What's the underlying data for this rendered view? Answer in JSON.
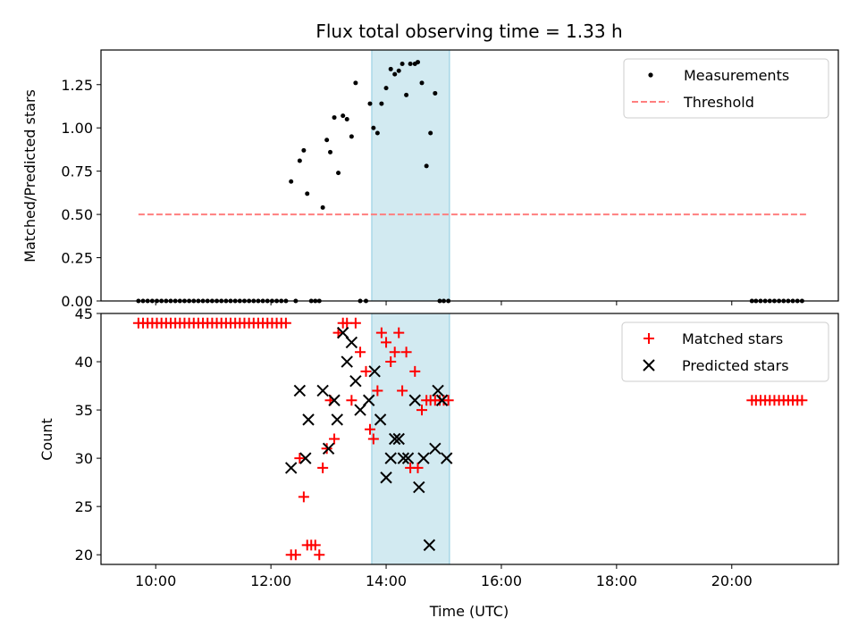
{
  "chart_data": [
    {
      "type": "scatter",
      "title": "Flux total observing time = 1.33 h",
      "xlabel": "",
      "ylabel": "Matched/Predicted stars",
      "xlim": [
        9.05,
        21.85
      ],
      "ylim": [
        0.0,
        1.45
      ],
      "yticks": [
        0.0,
        0.25,
        0.5,
        0.75,
        1.0,
        1.25
      ],
      "ytick_labels": [
        "0.00",
        "0.25",
        "0.50",
        "0.75",
        "1.00",
        "1.25"
      ],
      "xticks": [
        10,
        12,
        14,
        16,
        18,
        20
      ],
      "xtick_labels": [],
      "shaded_span": {
        "x_start": 13.75,
        "x_end": 15.1,
        "color": "#add8e6"
      },
      "legend_position": "top-right",
      "series": [
        {
          "name": "Measurements",
          "marker": "dot",
          "color": "#000000",
          "x": [
            9.7,
            9.78,
            9.86,
            9.94,
            10.02,
            10.1,
            10.18,
            10.26,
            10.34,
            10.42,
            10.5,
            10.58,
            10.66,
            10.74,
            10.82,
            10.9,
            10.98,
            11.06,
            11.14,
            11.22,
            11.3,
            11.38,
            11.46,
            11.54,
            11.62,
            11.7,
            11.78,
            11.86,
            11.94,
            12.02,
            12.1,
            12.18,
            12.26,
            12.35,
            12.43,
            12.5,
            12.57,
            12.63,
            12.7,
            12.77,
            12.84,
            12.9,
            12.97,
            13.03,
            13.1,
            13.17,
            13.25,
            13.32,
            13.4,
            13.47,
            13.55,
            13.65,
            13.72,
            13.78,
            13.85,
            13.92,
            14.0,
            14.08,
            14.15,
            14.22,
            14.28,
            14.35,
            14.42,
            14.5,
            14.55,
            14.62,
            14.7,
            14.77,
            14.85,
            14.93,
            15.0,
            15.08,
            20.35,
            20.42,
            20.5,
            20.58,
            20.66,
            20.74,
            20.82,
            20.9,
            20.98,
            21.06,
            21.14,
            21.22
          ],
          "y": [
            0,
            0,
            0,
            0,
            0,
            0,
            0,
            0,
            0,
            0,
            0,
            0,
            0,
            0,
            0,
            0,
            0,
            0,
            0,
            0,
            0,
            0,
            0,
            0,
            0,
            0,
            0,
            0,
            0,
            0,
            0,
            0,
            0,
            0.69,
            0,
            0.81,
            0.87,
            0.62,
            0,
            0,
            0,
            0.54,
            0.93,
            0.86,
            1.06,
            0.74,
            1.07,
            1.05,
            0.95,
            1.26,
            0,
            0,
            1.14,
            1.0,
            0.97,
            1.14,
            1.23,
            1.34,
            1.31,
            1.33,
            1.37,
            1.19,
            1.37,
            1.37,
            1.38,
            1.26,
            0.78,
            0.97,
            1.2,
            0,
            0,
            0,
            0,
            0,
            0,
            0,
            0,
            0,
            0,
            0,
            0,
            0,
            0,
            0
          ]
        },
        {
          "name": "Threshold",
          "marker": "dashed-line",
          "color": "#ff7f7f",
          "x": [
            9.7,
            21.3
          ],
          "y": [
            0.5,
            0.5
          ]
        }
      ]
    },
    {
      "type": "scatter",
      "title": "",
      "xlabel": "Time (UTC)",
      "ylabel": "Count",
      "xlim": [
        9.05,
        21.85
      ],
      "ylim": [
        19,
        45
      ],
      "yticks": [
        20,
        25,
        30,
        35,
        40,
        45
      ],
      "ytick_labels": [
        "20",
        "25",
        "30",
        "35",
        "40",
        "45"
      ],
      "xticks": [
        10,
        12,
        14,
        16,
        18,
        20
      ],
      "xtick_labels": [
        "10:00",
        "12:00",
        "14:00",
        "16:00",
        "18:00",
        "20:00"
      ],
      "shaded_span": {
        "x_start": 13.75,
        "x_end": 15.1,
        "color": "#add8e6"
      },
      "legend_position": "top-right",
      "series": [
        {
          "name": "Matched stars",
          "marker": "plus",
          "color": "#ff0000",
          "x": [
            9.7,
            9.78,
            9.86,
            9.94,
            10.02,
            10.1,
            10.18,
            10.26,
            10.34,
            10.42,
            10.5,
            10.58,
            10.66,
            10.74,
            10.82,
            10.9,
            10.98,
            11.06,
            11.14,
            11.22,
            11.3,
            11.38,
            11.46,
            11.54,
            11.62,
            11.7,
            11.78,
            11.86,
            11.94,
            12.02,
            12.1,
            12.18,
            12.26,
            12.35,
            12.43,
            12.5,
            12.57,
            12.63,
            12.7,
            12.77,
            12.84,
            12.9,
            12.97,
            13.03,
            13.1,
            13.17,
            13.25,
            13.32,
            13.4,
            13.47,
            13.55,
            13.65,
            13.72,
            13.78,
            13.85,
            13.92,
            14.0,
            14.08,
            14.15,
            14.22,
            14.28,
            14.35,
            14.42,
            14.5,
            14.55,
            14.62,
            14.7,
            14.77,
            14.85,
            14.93,
            15.0,
            15.08,
            20.35,
            20.42,
            20.5,
            20.58,
            20.66,
            20.74,
            20.82,
            20.9,
            20.98,
            21.06,
            21.14,
            21.22
          ],
          "y": [
            44,
            44,
            44,
            44,
            44,
            44,
            44,
            44,
            44,
            44,
            44,
            44,
            44,
            44,
            44,
            44,
            44,
            44,
            44,
            44,
            44,
            44,
            44,
            44,
            44,
            44,
            44,
            44,
            44,
            44,
            44,
            44,
            44,
            20,
            20,
            30,
            26,
            21,
            21,
            21,
            20,
            29,
            31,
            36,
            32,
            43,
            44,
            44,
            36,
            44,
            41,
            39,
            33,
            32,
            37,
            43,
            42,
            40,
            41,
            43,
            37,
            41,
            29,
            39,
            29,
            35,
            36,
            36,
            36,
            36,
            36,
            36,
            36,
            36,
            36,
            36,
            36,
            36,
            36,
            36,
            36,
            36,
            36,
            36
          ]
        },
        {
          "name": "Predicted stars",
          "marker": "x",
          "color": "#000000",
          "x": [
            12.35,
            12.5,
            12.6,
            12.65,
            12.9,
            13.0,
            13.1,
            13.15,
            13.25,
            13.32,
            13.4,
            13.47,
            13.55,
            13.7,
            13.8,
            13.9,
            14.0,
            14.08,
            14.15,
            14.22,
            14.3,
            14.38,
            14.5,
            14.57,
            14.65,
            14.75,
            14.85,
            14.9,
            14.97,
            15.05
          ],
          "y": [
            29,
            37,
            30,
            34,
            37,
            31,
            36,
            34,
            43,
            40,
            42,
            38,
            35,
            36,
            39,
            34,
            28,
            30,
            32,
            32,
            30,
            30,
            36,
            27,
            30,
            21,
            31,
            37,
            36,
            30
          ]
        }
      ]
    }
  ]
}
